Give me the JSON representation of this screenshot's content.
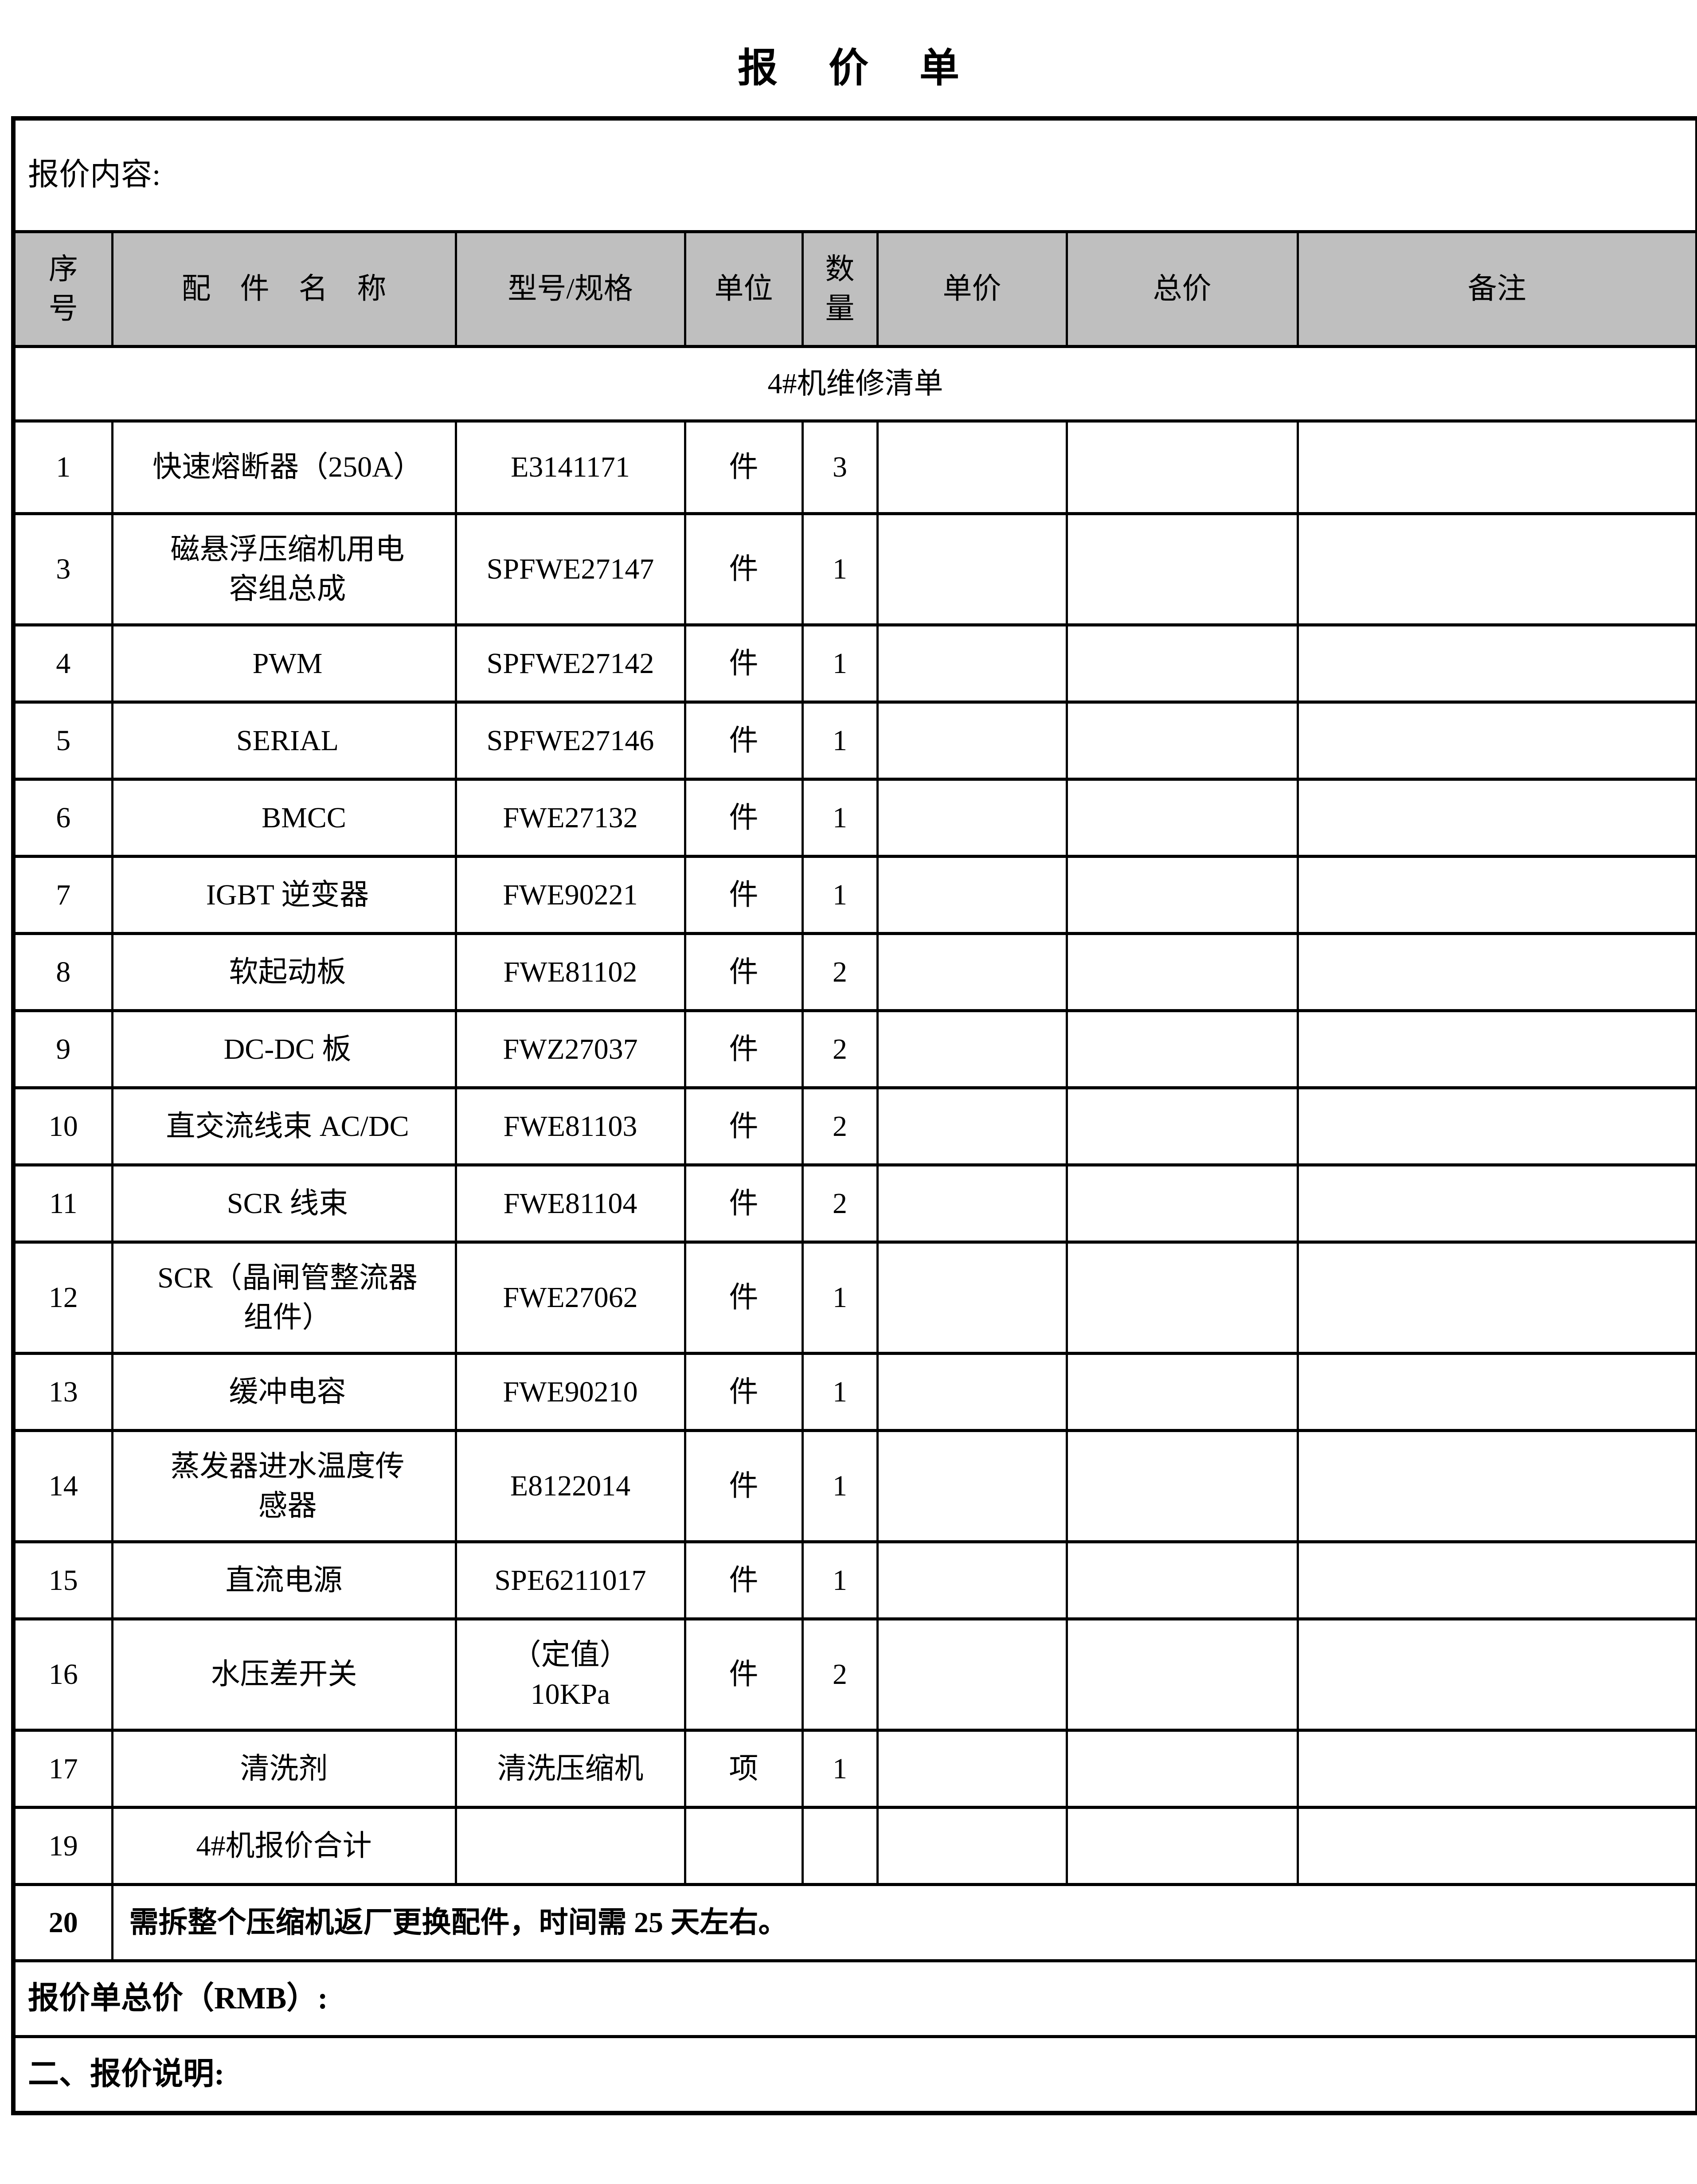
{
  "page_title": "报价单",
  "content_label": "报价内容:",
  "columns": [
    "序\n号",
    "配　件　名　称",
    "型号/规格",
    "单位",
    "数\n量",
    "单价",
    "总价",
    "备注"
  ],
  "section_label": "4#机维修清单",
  "rows": [
    {
      "no": "1",
      "name": "快速熔断器（250A）",
      "model": "E3141171",
      "unit": "件",
      "qty": "3"
    },
    {
      "no": "3",
      "name": "磁悬浮压缩机用电\n容组总成",
      "model": "SPFWE27147",
      "unit": "件",
      "qty": "1"
    },
    {
      "no": "4",
      "name": "PWM",
      "model": "SPFWE27142",
      "unit": "件",
      "qty": "1"
    },
    {
      "no": "5",
      "name": "SERIAL",
      "model": "SPFWE27146",
      "unit": "件",
      "qty": "1"
    },
    {
      "no": "6",
      "name": "BMCC",
      "model": "FWE27132",
      "unit": "件",
      "qty": "1"
    },
    {
      "no": "7",
      "name": "IGBT 逆变器",
      "model": "FWE90221",
      "unit": "件",
      "qty": "1"
    },
    {
      "no": "8",
      "name": "软起动板",
      "model": "FWE81102",
      "unit": "件",
      "qty": "2"
    },
    {
      "no": "9",
      "name": "DC-DC 板",
      "model": "FWZ27037",
      "unit": "件",
      "qty": "2"
    },
    {
      "no": "10",
      "name": "直交流线束 AC/DC",
      "model": "FWE81103",
      "unit": "件",
      "qty": "2"
    },
    {
      "no": "11",
      "name": "SCR 线束",
      "model": "FWE81104",
      "unit": "件",
      "qty": "2"
    },
    {
      "no": "12",
      "name": "SCR（晶闸管整流器\n组件）",
      "model": "FWE27062",
      "unit": "件",
      "qty": "1"
    },
    {
      "no": "13",
      "name": "缓冲电容",
      "model": "FWE90210",
      "unit": "件",
      "qty": "1"
    },
    {
      "no": "14",
      "name": "蒸发器进水温度传\n感器",
      "model": "E8122014",
      "unit": "件",
      "qty": "1"
    },
    {
      "no": "15",
      "name": "直流电源",
      "model": "SPE6211017",
      "unit": "件",
      "qty": "1"
    },
    {
      "no": "16",
      "name": "水压差开关",
      "model": "（定值）\n10KPa",
      "unit": "件",
      "qty": "2"
    },
    {
      "no": "17",
      "name": "清洗剂",
      "model": "清洗压缩机",
      "unit": "项",
      "qty": "1"
    },
    {
      "no": "19",
      "name": "4#机报价合计",
      "model": "",
      "unit": "",
      "qty": ""
    }
  ],
  "row20": {
    "no": "20",
    "text": "需拆整个压缩机返厂更换配件，时间需 25 天左右。"
  },
  "total_label": "报价单总价（RMB）:",
  "note_label": "二、报价说明:",
  "colors": {
    "header_bg": "#bfbfbf",
    "border": "#000000",
    "page_bg": "#ffffff"
  }
}
